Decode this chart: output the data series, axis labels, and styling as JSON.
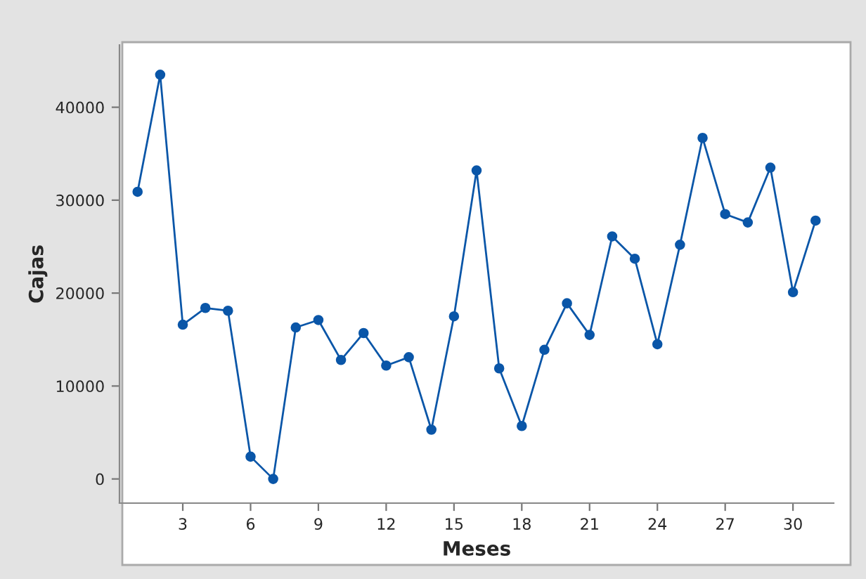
{
  "chart_data": {
    "type": "line",
    "xlabel": "Meses",
    "ylabel": "Cajas",
    "x": [
      1,
      2,
      3,
      4,
      5,
      6,
      7,
      8,
      9,
      10,
      11,
      12,
      13,
      14,
      15,
      16,
      17,
      18,
      19,
      20,
      21,
      22,
      23,
      24,
      25,
      26,
      27,
      28,
      29,
      30,
      31
    ],
    "series": [
      {
        "color": "#0a56a8",
        "values": [
          30900,
          43500,
          16600,
          18400,
          18100,
          2400,
          0,
          16300,
          17100,
          12800,
          15700,
          12200,
          13100,
          5300,
          17500,
          33200,
          11900,
          5700,
          13900,
          18900,
          15500,
          26100,
          23700,
          14500,
          25200,
          36700,
          28500,
          27600,
          33500,
          20100,
          27800
        ]
      }
    ],
    "xlim": [
      0.2,
      31.8
    ],
    "xticks": [
      3,
      6,
      9,
      12,
      15,
      18,
      21,
      24,
      27,
      30
    ],
    "ylim": [
      -2600,
      46700
    ],
    "yticks": [
      0,
      10000,
      20000,
      30000,
      40000
    ],
    "marker": "circle",
    "line_style": "solid",
    "grid": false
  }
}
